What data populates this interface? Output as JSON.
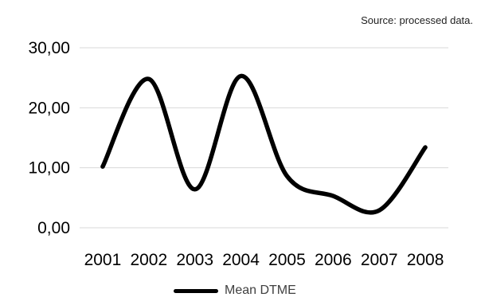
{
  "source_note": "Source: processed data.",
  "chart_data": {
    "type": "line",
    "categories": [
      "2001",
      "2002",
      "2003",
      "2004",
      "2005",
      "2006",
      "2007",
      "2008"
    ],
    "series": [
      {
        "name": "Mean DTME",
        "values": [
          10.2,
          24.8,
          6.4,
          25.3,
          8.6,
          5.3,
          2.9,
          13.4
        ],
        "color": "#000000"
      }
    ],
    "ylim": [
      0,
      30
    ],
    "yticks": [
      0,
      10,
      20,
      30
    ],
    "ytick_labels": [
      "0,00",
      "10,00",
      "20,00",
      "30,00"
    ],
    "grid": true,
    "grid_color": "#d9d9d9",
    "smooth": true,
    "legend_position": "bottom",
    "title": "",
    "xlabel": "",
    "ylabel": ""
  }
}
